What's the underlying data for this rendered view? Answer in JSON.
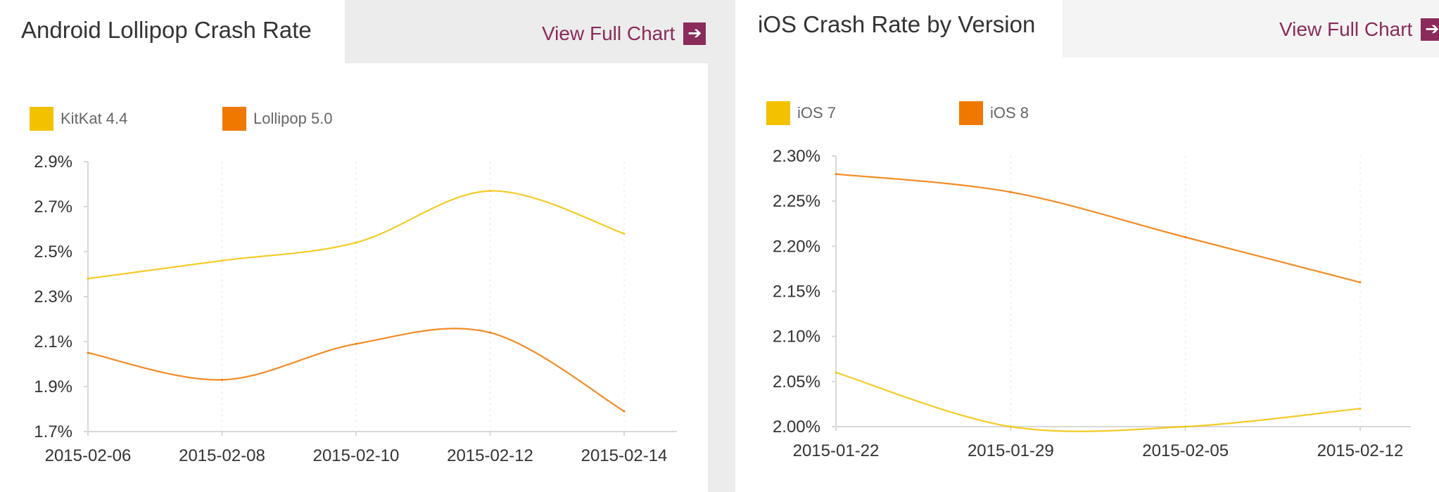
{
  "panels": [
    {
      "id": "android",
      "title": "Android Lollipop Crash Rate",
      "view_full_chart": "View Full Chart",
      "arrow_icon": "arrow-right-box-icon"
    },
    {
      "id": "ios",
      "title": "iOS Crash Rate by Version",
      "view_full_chart": "View Full Chart",
      "arrow_icon": "arrow-right-box-icon"
    }
  ],
  "chart_data": [
    {
      "type": "line",
      "title": "Android Lollipop Crash Rate",
      "x": [
        "2015-02-06",
        "2015-02-08",
        "2015-02-10",
        "2015-02-12",
        "2015-02-14"
      ],
      "ytick_labels": [
        "2.9%",
        "2.7%",
        "2.5%",
        "2.3%",
        "2.1%",
        "1.9%",
        "1.7%"
      ],
      "ylim": [
        1.7,
        2.9
      ],
      "legend_position": "top-left",
      "grid": "vertical dotted",
      "series": [
        {
          "name": "KitKat 4.4",
          "color": "#f2c200",
          "values": [
            2.38,
            2.46,
            2.54,
            2.77,
            2.58
          ]
        },
        {
          "name": "Lollipop 5.0",
          "color": "#f07800",
          "values": [
            2.05,
            1.93,
            2.09,
            2.14,
            1.79
          ]
        }
      ]
    },
    {
      "type": "line",
      "title": "iOS Crash Rate by Version",
      "x": [
        "2015-01-22",
        "2015-01-29",
        "2015-02-05",
        "2015-02-12"
      ],
      "ytick_labels": [
        "2.30%",
        "2.25%",
        "2.20%",
        "2.15%",
        "2.10%",
        "2.05%",
        "2.00%"
      ],
      "ylim": [
        2.0,
        2.3
      ],
      "legend_position": "top-left",
      "grid": "vertical dotted",
      "series": [
        {
          "name": "iOS 7",
          "color": "#f2c200",
          "values": [
            2.06,
            2.0,
            2.0,
            2.02
          ]
        },
        {
          "name": "iOS 8",
          "color": "#f07800",
          "values": [
            2.28,
            2.26,
            2.21,
            2.16
          ]
        }
      ]
    }
  ]
}
